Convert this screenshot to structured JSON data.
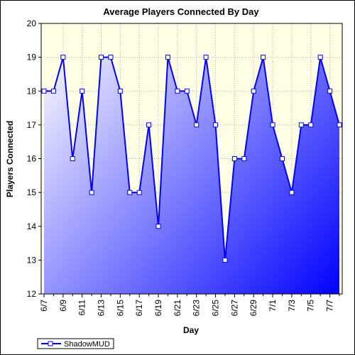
{
  "chart_data": {
    "type": "area",
    "title": "Average Players Connected By Day",
    "xlabel": "Day",
    "ylabel": "Players Connected",
    "ylim": [
      12,
      20
    ],
    "yticks": [
      12,
      13,
      14,
      15,
      16,
      17,
      18,
      19,
      20
    ],
    "grid": "dotted",
    "legend_position": "bottom-left",
    "categories": [
      "6/7",
      "6/8",
      "6/9",
      "6/10",
      "6/11",
      "6/12",
      "6/13",
      "6/14",
      "6/15",
      "6/16",
      "6/17",
      "6/18",
      "6/19",
      "6/20",
      "6/21",
      "6/22",
      "6/23",
      "6/24",
      "6/25",
      "6/26",
      "6/27",
      "6/28",
      "6/29",
      "6/30",
      "7/1",
      "7/2",
      "7/3",
      "7/4",
      "7/5",
      "7/6",
      "7/7",
      "7/8"
    ],
    "tick_labels": [
      "6/7",
      "6/9",
      "6/11",
      "6/13",
      "6/15",
      "6/17",
      "6/19",
      "6/21",
      "6/23",
      "6/25",
      "6/27",
      "6/29",
      "7/1",
      "7/3",
      "7/5",
      "7/7"
    ],
    "series": [
      {
        "name": "ShadowMUD",
        "values": [
          18,
          18,
          19,
          16,
          18,
          15,
          19,
          19,
          18,
          15,
          15,
          17,
          14,
          19,
          18,
          18,
          17,
          19,
          17,
          13,
          16,
          16,
          18,
          19,
          17,
          16,
          15,
          17,
          17,
          19,
          18,
          17
        ]
      }
    ],
    "colors": {
      "line": "#0000ff",
      "plot_background": "#ffffe6",
      "fill_top": "#ffffff",
      "fill_bottom": "#0000ff",
      "grid": "#b0b0b0"
    }
  }
}
